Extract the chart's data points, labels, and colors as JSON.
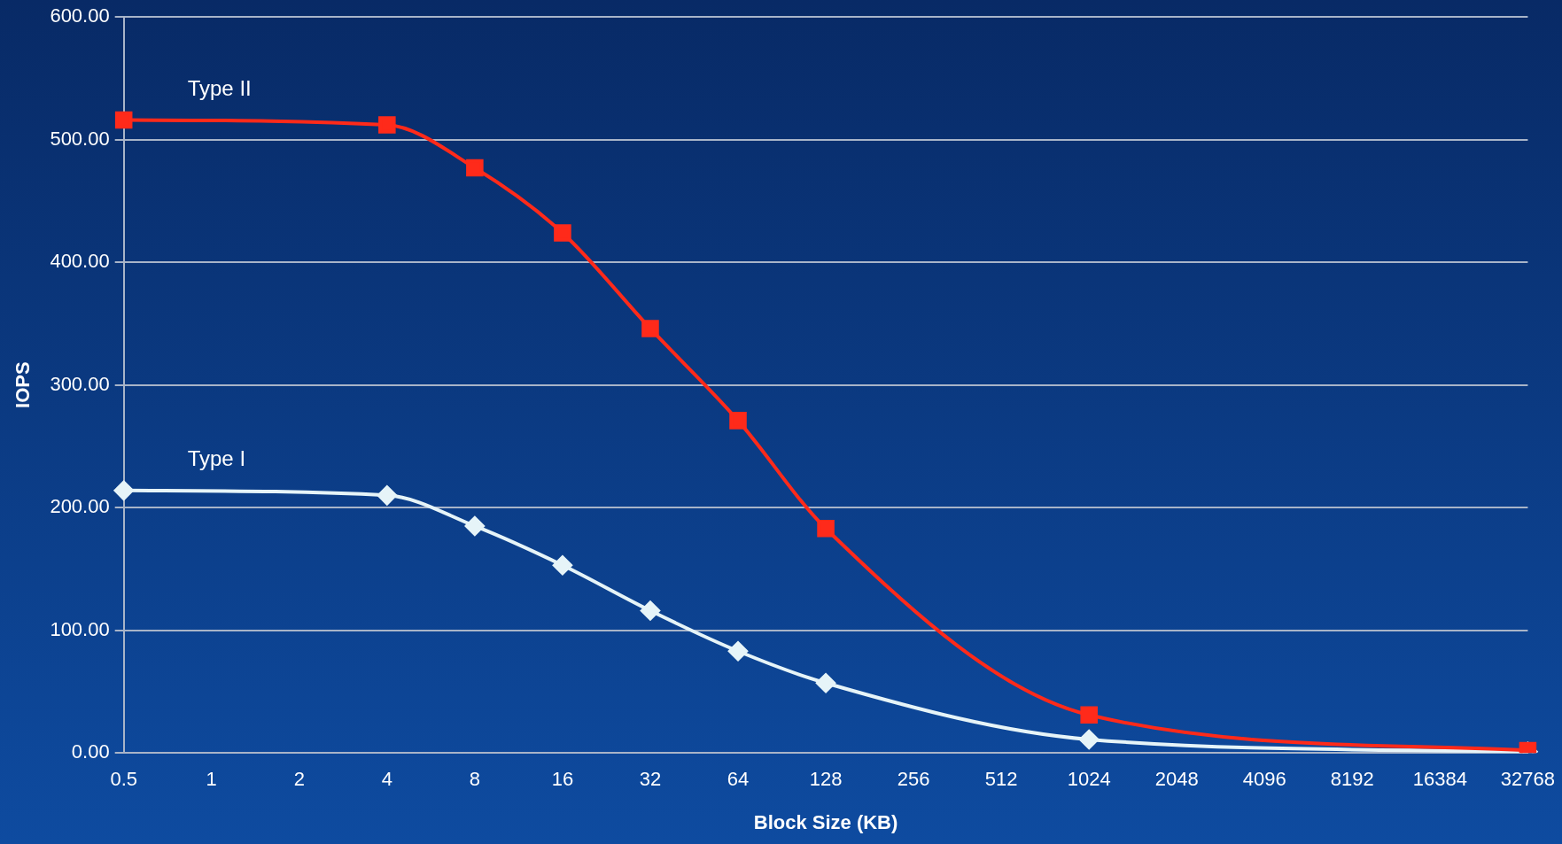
{
  "chart_data": {
    "type": "line",
    "xlabel": "Block Size (KB)",
    "ylabel": "IOPS",
    "categories": [
      "0.5",
      "1",
      "2",
      "4",
      "8",
      "16",
      "32",
      "64",
      "128",
      "256",
      "512",
      "1024",
      "2048",
      "4096",
      "8192",
      "16384",
      "32768"
    ],
    "series": [
      {
        "name": "Type II",
        "color": "#ff2a1a",
        "marker": "square",
        "values": [
          516,
          null,
          null,
          512,
          477,
          424,
          346,
          271,
          183,
          null,
          null,
          31,
          null,
          null,
          null,
          null,
          2
        ]
      },
      {
        "name": "Type I",
        "color": "#e6f4f8",
        "marker": "diamond",
        "values": [
          214,
          null,
          null,
          210,
          185,
          153,
          116,
          83,
          57,
          null,
          null,
          11,
          null,
          null,
          null,
          null,
          1
        ]
      }
    ],
    "ylim": [
      0,
      600
    ],
    "yticks": [
      {
        "value": 0,
        "label": "0.00"
      },
      {
        "value": 100,
        "label": "100.00"
      },
      {
        "value": 200,
        "label": "200.00"
      },
      {
        "value": 300,
        "label": "300.00"
      },
      {
        "value": 400,
        "label": "400.00"
      },
      {
        "value": 500,
        "label": "500.00"
      },
      {
        "value": 600,
        "label": "600.00"
      }
    ],
    "grid": "y",
    "legend": false
  }
}
